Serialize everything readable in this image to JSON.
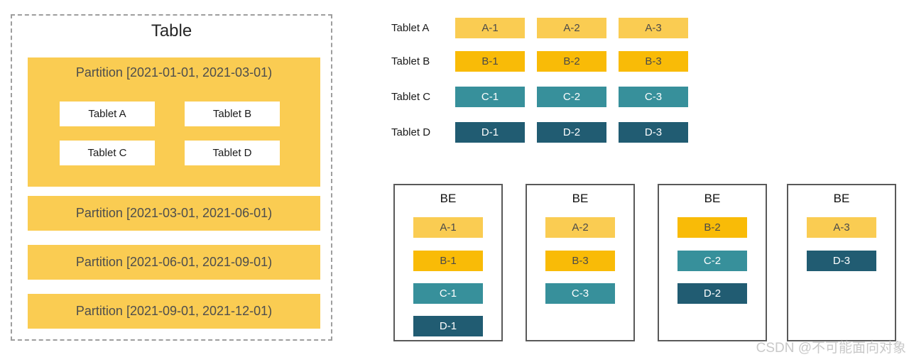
{
  "watermark": "CSDN @不可能面向对象",
  "colors": {
    "amber": "#FACC52",
    "gold": "#F9BB07",
    "teal": "#37909B",
    "dark": "#215C72"
  },
  "table_panel": {
    "title": "Table",
    "partitions": [
      {
        "label": "Partition [2021-01-01, 2021-03-01)",
        "tablets": [
          "Tablet A",
          "Tablet B",
          "Tablet C",
          "Tablet D"
        ]
      },
      {
        "label": "Partition [2021-03-01, 2021-06-01)"
      },
      {
        "label": "Partition [2021-06-01, 2021-09-01)"
      },
      {
        "label": "Partition [2021-09-01, 2021-12-01)"
      }
    ]
  },
  "tablet_rows": [
    {
      "label": "Tablet A",
      "replicas": [
        "A-1",
        "A-2",
        "A-3"
      ]
    },
    {
      "label": "Tablet B",
      "replicas": [
        "B-1",
        "B-2",
        "B-3"
      ]
    },
    {
      "label": "Tablet C",
      "replicas": [
        "C-1",
        "C-2",
        "C-3"
      ]
    },
    {
      "label": "Tablet D",
      "replicas": [
        "D-1",
        "D-2",
        "D-3"
      ]
    }
  ],
  "be_nodes": [
    {
      "title": "BE",
      "replicas": [
        "A-1",
        "B-1",
        "C-1",
        "D-1"
      ]
    },
    {
      "title": "BE",
      "replicas": [
        "A-2",
        "B-3",
        "C-3"
      ]
    },
    {
      "title": "BE",
      "replicas": [
        "B-2",
        "C-2",
        "D-2"
      ]
    },
    {
      "title": "BE",
      "replicas": [
        "A-3",
        "D-3"
      ]
    }
  ]
}
